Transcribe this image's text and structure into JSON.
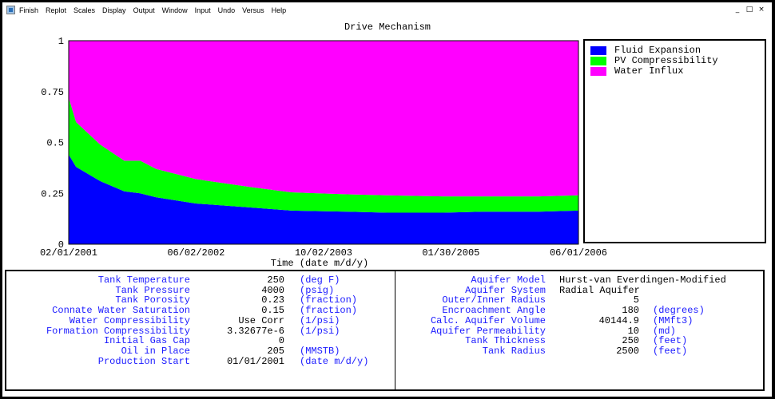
{
  "menu": {
    "items": [
      "Finish",
      "Replot",
      "Scales",
      "Display",
      "Output",
      "Window",
      "Input",
      "Undo",
      "Versus",
      "Help"
    ]
  },
  "window_controls": {
    "minimize": "_",
    "restore": "□",
    "close": "×"
  },
  "chart_data": {
    "type": "area",
    "title": "Drive Mechanism",
    "xlabel": "Time (date m/d/y)",
    "ylabel": "",
    "x_ticks": [
      "02/01/2001",
      "06/02/2002",
      "10/02/2003",
      "01/30/2005",
      "06/01/2006"
    ],
    "y_ticks": [
      "0",
      "0.25",
      "0.5",
      "0.75",
      "1"
    ],
    "xlim": [
      "02/01/2001",
      "06/01/2006"
    ],
    "ylim": [
      0,
      1
    ],
    "stacking": "stacked to 1",
    "legend_position": "right",
    "x": [
      "02/01/2001",
      "03/01/2001",
      "06/01/2001",
      "09/01/2001",
      "11/01/2001",
      "01/01/2002",
      "06/01/2002",
      "01/01/2003",
      "06/01/2003",
      "01/01/2004",
      "06/01/2004",
      "01/01/2005",
      "06/01/2005",
      "01/01/2006",
      "06/01/2006"
    ],
    "series": [
      {
        "name": "Fluid Expansion",
        "color": "#0000ff",
        "values": [
          0.44,
          0.38,
          0.31,
          0.26,
          0.25,
          0.23,
          0.2,
          0.18,
          0.165,
          0.16,
          0.155,
          0.155,
          0.16,
          0.16,
          0.165
        ]
      },
      {
        "name": "PV Compressibility",
        "color": "#00ff00",
        "values": [
          0.28,
          0.22,
          0.18,
          0.15,
          0.16,
          0.14,
          0.12,
          0.1,
          0.09,
          0.085,
          0.085,
          0.08,
          0.075,
          0.075,
          0.075
        ]
      },
      {
        "name": "Water Influx",
        "color": "#ff00ff",
        "values": [
          0.28,
          0.4,
          0.51,
          0.59,
          0.59,
          0.63,
          0.68,
          0.72,
          0.745,
          0.755,
          0.76,
          0.765,
          0.765,
          0.765,
          0.76
        ]
      }
    ]
  },
  "left_params": [
    {
      "label": "Tank Temperature",
      "value": "250",
      "unit": "(deg F)"
    },
    {
      "label": "Tank Pressure",
      "value": "4000",
      "unit": "(psig)"
    },
    {
      "label": "Tank Porosity",
      "value": "0.23",
      "unit": "(fraction)"
    },
    {
      "label": "Connate Water Saturation",
      "value": "0.15",
      "unit": "(fraction)"
    },
    {
      "label": "Water Compressibility",
      "value": "Use Corr",
      "unit": "(1/psi)"
    },
    {
      "label": "Formation Compressibility",
      "value": "3.32677e-6",
      "unit": "(1/psi)"
    },
    {
      "label": "Initial Gas Cap",
      "value": "0",
      "unit": ""
    },
    {
      "label": "Oil in Place",
      "value": "205",
      "unit": "(MMSTB)"
    },
    {
      "label": "Production Start",
      "value": "01/01/2001",
      "unit": "(date m/d/y)"
    }
  ],
  "right_params": [
    {
      "label": "Aquifer Model",
      "value": "Hurst-van Everdingen-Modified",
      "unit": "",
      "align": "left"
    },
    {
      "label": "Aquifer System",
      "value": "Radial Aquifer",
      "unit": "",
      "align": "left"
    },
    {
      "label": "Outer/Inner Radius",
      "value": "5",
      "unit": "",
      "align": "right"
    },
    {
      "label": "Encroachment Angle",
      "value": "180",
      "unit": "(degrees)",
      "align": "right"
    },
    {
      "label": "Calc. Aquifer Volume",
      "value": "40144.9",
      "unit": "(MMft3)",
      "align": "right"
    },
    {
      "label": "Aquifer Permeability",
      "value": "10",
      "unit": "(md)",
      "align": "right"
    },
    {
      "label": "Tank Thickness",
      "value": "250",
      "unit": "(feet)",
      "align": "right"
    },
    {
      "label": "Tank Radius",
      "value": "2500",
      "unit": "(feet)",
      "align": "right"
    }
  ]
}
